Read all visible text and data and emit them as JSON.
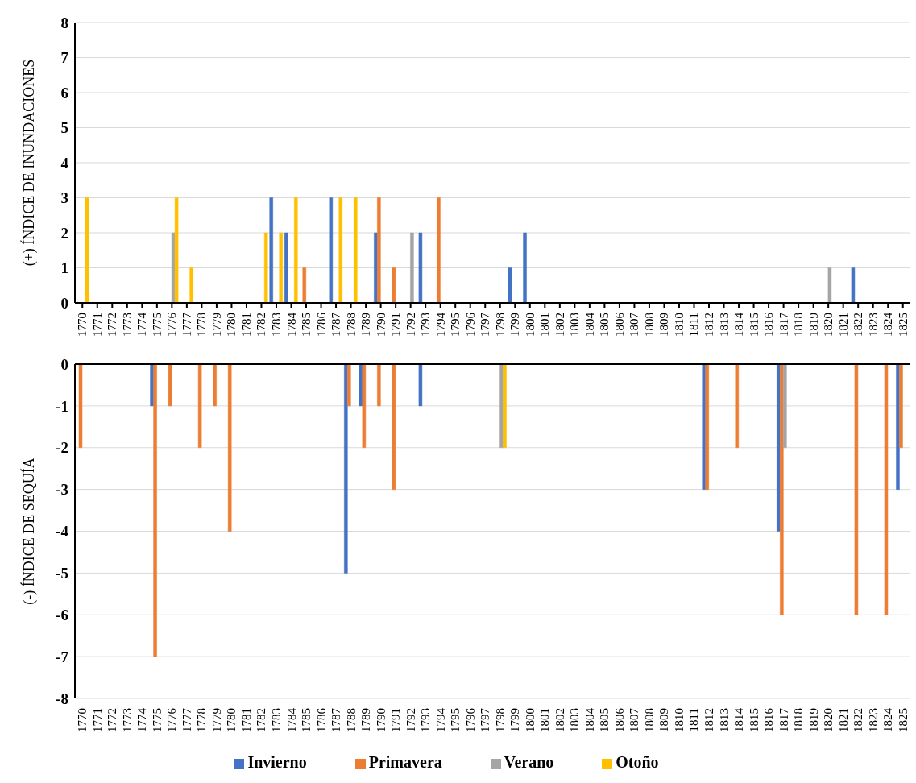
{
  "chart_data": [
    {
      "type": "bar",
      "ylabel": "(+) ÍNDICE DE INUNDACIONES",
      "categories": [
        "1770",
        "1771",
        "1772",
        "1773",
        "1774",
        "1775",
        "1776",
        "1777",
        "1778",
        "1779",
        "1780",
        "1781",
        "1782",
        "1783",
        "1784",
        "1785",
        "1786",
        "1787",
        "1788",
        "1789",
        "1790",
        "1791",
        "1792",
        "1793",
        "1794",
        "1795",
        "1796",
        "1797",
        "1798",
        "1799",
        "1800",
        "1801",
        "1802",
        "1803",
        "1804",
        "1805",
        "1806",
        "1807",
        "1808",
        "1809",
        "1810",
        "1811",
        "1812",
        "1813",
        "1814",
        "1815",
        "1816",
        "1817",
        "1818",
        "1819",
        "1820",
        "1821",
        "1822",
        "1823",
        "1824",
        "1825"
      ],
      "series": [
        {
          "color": "#4472c4",
          "values": [
            null,
            null,
            null,
            null,
            null,
            null,
            null,
            null,
            null,
            null,
            null,
            null,
            null,
            3,
            2,
            null,
            null,
            3,
            null,
            null,
            2,
            null,
            null,
            2,
            null,
            null,
            null,
            null,
            null,
            1,
            2,
            null,
            null,
            null,
            null,
            null,
            null,
            null,
            null,
            null,
            null,
            null,
            null,
            null,
            null,
            null,
            null,
            null,
            null,
            null,
            null,
            null,
            1,
            null,
            null,
            null
          ]
        },
        {
          "color": "#ed7d31",
          "values": [
            null,
            null,
            null,
            null,
            null,
            null,
            null,
            null,
            null,
            null,
            null,
            null,
            null,
            null,
            null,
            1,
            null,
            null,
            null,
            null,
            3,
            1,
            null,
            null,
            3,
            null,
            null,
            null,
            null,
            null,
            null,
            null,
            null,
            null,
            null,
            null,
            null,
            null,
            null,
            null,
            null,
            null,
            null,
            null,
            null,
            null,
            null,
            null,
            null,
            null,
            null,
            null,
            null,
            null,
            null,
            null
          ]
        },
        {
          "color": "#a5a5a5",
          "values": [
            null,
            null,
            null,
            null,
            null,
            null,
            2,
            null,
            null,
            null,
            null,
            null,
            null,
            null,
            null,
            null,
            null,
            null,
            null,
            null,
            null,
            null,
            2,
            null,
            null,
            null,
            null,
            null,
            null,
            null,
            null,
            null,
            null,
            null,
            null,
            null,
            null,
            null,
            null,
            null,
            null,
            null,
            null,
            null,
            null,
            null,
            null,
            null,
            null,
            null,
            1,
            null,
            null,
            null,
            null,
            null
          ]
        },
        {
          "color": "#ffc000",
          "values": [
            3,
            null,
            null,
            null,
            null,
            null,
            3,
            1,
            null,
            null,
            null,
            null,
            2,
            2,
            3,
            null,
            null,
            3,
            3,
            null,
            null,
            null,
            null,
            null,
            null,
            null,
            null,
            null,
            null,
            null,
            null,
            null,
            null,
            null,
            null,
            null,
            null,
            null,
            null,
            null,
            null,
            null,
            null,
            null,
            null,
            null,
            null,
            null,
            null,
            null,
            null,
            null,
            null,
            null,
            null,
            null
          ]
        }
      ],
      "ylim": [
        0,
        8
      ],
      "yticks": [
        0,
        1,
        2,
        3,
        4,
        5,
        6,
        7,
        8
      ],
      "grid": "y"
    },
    {
      "type": "bar",
      "ylabel": "(-) ÍNDICE DE SEQUÍA",
      "categories": [
        "1770",
        "1771",
        "1772",
        "1773",
        "1774",
        "1775",
        "1776",
        "1777",
        "1778",
        "1779",
        "1780",
        "1781",
        "1782",
        "1783",
        "1784",
        "1785",
        "1786",
        "1787",
        "1788",
        "1789",
        "1790",
        "1791",
        "1792",
        "1793",
        "1794",
        "1795",
        "1796",
        "1797",
        "1798",
        "1799",
        "1800",
        "1801",
        "1802",
        "1803",
        "1804",
        "1805",
        "1806",
        "1807",
        "1808",
        "1809",
        "1810",
        "1811",
        "1812",
        "1813",
        "1814",
        "1815",
        "1816",
        "1817",
        "1818",
        "1819",
        "1820",
        "1821",
        "1822",
        "1823",
        "1824",
        "1825"
      ],
      "series": [
        {
          "name": "Invierno",
          "color": "#4472c4",
          "values": [
            null,
            null,
            null,
            null,
            null,
            -1,
            null,
            null,
            null,
            null,
            null,
            null,
            null,
            null,
            null,
            null,
            null,
            null,
            -5,
            -1,
            null,
            null,
            null,
            -1,
            null,
            null,
            null,
            null,
            null,
            null,
            null,
            null,
            null,
            null,
            null,
            null,
            null,
            null,
            null,
            null,
            null,
            null,
            -3,
            null,
            null,
            null,
            null,
            -4,
            null,
            null,
            null,
            null,
            null,
            null,
            null,
            -3
          ]
        },
        {
          "name": "Primavera",
          "color": "#ed7d31",
          "values": [
            -2,
            null,
            null,
            null,
            null,
            -7,
            -1,
            null,
            -2,
            -1,
            -4,
            null,
            null,
            null,
            null,
            null,
            null,
            null,
            -1,
            -2,
            -1,
            -3,
            null,
            null,
            null,
            null,
            null,
            null,
            null,
            null,
            null,
            null,
            null,
            null,
            null,
            null,
            null,
            null,
            null,
            null,
            null,
            null,
            -3,
            null,
            -2,
            null,
            null,
            -6,
            null,
            null,
            null,
            null,
            -6,
            null,
            -6,
            -2
          ]
        },
        {
          "name": "Verano",
          "color": "#a5a5a5",
          "values": [
            null,
            null,
            null,
            null,
            null,
            null,
            null,
            null,
            null,
            null,
            null,
            null,
            null,
            null,
            null,
            null,
            null,
            null,
            null,
            null,
            null,
            null,
            null,
            null,
            null,
            null,
            null,
            null,
            -2,
            null,
            null,
            null,
            null,
            null,
            null,
            null,
            null,
            null,
            null,
            null,
            null,
            null,
            null,
            null,
            null,
            null,
            null,
            -2,
            null,
            null,
            null,
            null,
            null,
            null,
            null,
            null
          ]
        },
        {
          "name": "Otoño",
          "color": "#ffc000",
          "values": [
            null,
            null,
            null,
            null,
            null,
            null,
            null,
            null,
            null,
            null,
            null,
            null,
            null,
            null,
            null,
            null,
            null,
            null,
            null,
            null,
            null,
            null,
            null,
            null,
            null,
            null,
            null,
            null,
            -2,
            null,
            null,
            null,
            null,
            null,
            null,
            null,
            null,
            null,
            null,
            null,
            null,
            null,
            null,
            null,
            null,
            null,
            null,
            null,
            null,
            null,
            null,
            null,
            null,
            null,
            null,
            null
          ]
        }
      ],
      "ylim": [
        -8,
        0
      ],
      "yticks": [
        -8,
        -7,
        -6,
        -5,
        -4,
        -3,
        -2,
        -1,
        0
      ],
      "grid": "y",
      "legend": "bottom"
    }
  ]
}
